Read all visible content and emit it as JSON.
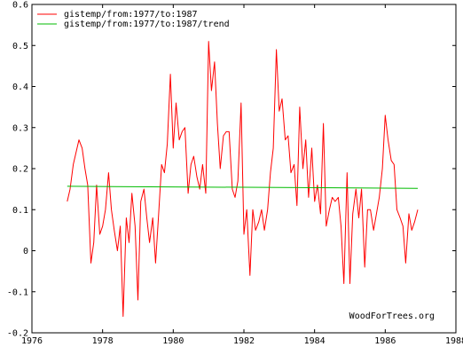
{
  "chart_data": {
    "type": "line",
    "title": "",
    "xlabel": "",
    "ylabel": "",
    "xlim": [
      1976,
      1988
    ],
    "ylim": [
      -0.2,
      0.6
    ],
    "x_ticks": [
      1976,
      1978,
      1980,
      1982,
      1984,
      1986,
      1988
    ],
    "x_tick_labels": [
      "1976",
      "1978",
      "1980",
      "1982",
      "1984",
      "1986",
      "1988"
    ],
    "y_ticks": [
      -0.2,
      -0.1,
      0,
      0.1,
      0.2,
      0.3,
      0.4,
      0.5,
      0.6
    ],
    "y_tick_labels": [
      "-0.2",
      "-0.1",
      "0",
      "0.1",
      "0.2",
      "0.3",
      "0.4",
      "0.5",
      "0.6"
    ],
    "grid": false,
    "legend_position": "top-left",
    "watermark": "WoodForTrees.org",
    "series": [
      {
        "name": "gistemp/from:1977/to:1987",
        "color": "#ff0000",
        "x": [
          1977.0,
          1977.08,
          1977.17,
          1977.25,
          1977.33,
          1977.42,
          1977.5,
          1977.58,
          1977.67,
          1977.75,
          1977.83,
          1977.92,
          1978.0,
          1978.08,
          1978.17,
          1978.25,
          1978.33,
          1978.42,
          1978.5,
          1978.58,
          1978.67,
          1978.75,
          1978.83,
          1978.92,
          1979.0,
          1979.08,
          1979.17,
          1979.25,
          1979.33,
          1979.42,
          1979.5,
          1979.58,
          1979.67,
          1979.75,
          1979.83,
          1979.92,
          1980.0,
          1980.08,
          1980.17,
          1980.25,
          1980.33,
          1980.42,
          1980.5,
          1980.58,
          1980.67,
          1980.75,
          1980.83,
          1980.92,
          1981.0,
          1981.08,
          1981.17,
          1981.25,
          1981.33,
          1981.42,
          1981.5,
          1981.58,
          1981.67,
          1981.75,
          1981.83,
          1981.92,
          1982.0,
          1982.08,
          1982.17,
          1982.25,
          1982.33,
          1982.42,
          1982.5,
          1982.58,
          1982.67,
          1982.75,
          1982.83,
          1982.92,
          1983.0,
          1983.08,
          1983.17,
          1983.25,
          1983.33,
          1983.42,
          1983.5,
          1983.58,
          1983.67,
          1983.75,
          1983.83,
          1983.92,
          1984.0,
          1984.08,
          1984.17,
          1984.25,
          1984.33,
          1984.42,
          1984.5,
          1984.58,
          1984.67,
          1984.75,
          1984.83,
          1984.92,
          1985.0,
          1985.08,
          1985.17,
          1985.25,
          1985.33,
          1985.42,
          1985.5,
          1985.58,
          1985.67,
          1985.75,
          1985.83,
          1985.92,
          1986.0,
          1986.08,
          1986.17,
          1986.25,
          1986.33,
          1986.42,
          1986.5,
          1986.58,
          1986.67,
          1986.75,
          1986.83,
          1986.92
        ],
        "values": [
          0.12,
          0.15,
          0.21,
          0.24,
          0.27,
          0.25,
          0.2,
          0.16,
          -0.03,
          0.02,
          0.16,
          0.04,
          0.06,
          0.1,
          0.19,
          0.1,
          0.05,
          0.0,
          0.06,
          -0.16,
          0.08,
          0.02,
          0.14,
          0.06,
          -0.12,
          0.12,
          0.15,
          0.08,
          0.02,
          0.08,
          -0.03,
          0.08,
          0.21,
          0.19,
          0.26,
          0.43,
          0.25,
          0.36,
          0.27,
          0.29,
          0.3,
          0.14,
          0.21,
          0.23,
          0.18,
          0.15,
          0.21,
          0.14,
          0.51,
          0.39,
          0.46,
          0.31,
          0.2,
          0.28,
          0.29,
          0.29,
          0.15,
          0.13,
          0.17,
          0.36,
          0.04,
          0.1,
          -0.06,
          0.1,
          0.05,
          0.07,
          0.1,
          0.05,
          0.1,
          0.19,
          0.25,
          0.49,
          0.34,
          0.37,
          0.27,
          0.28,
          0.19,
          0.21,
          0.11,
          0.35,
          0.2,
          0.27,
          0.13,
          0.25,
          0.12,
          0.16,
          0.09,
          0.31,
          0.06,
          0.1,
          0.13,
          0.12,
          0.13,
          0.06,
          -0.08,
          0.19,
          -0.08,
          0.09,
          0.15,
          0.08,
          0.15,
          -0.04,
          0.1,
          0.1,
          0.05,
          0.09,
          0.13,
          0.2,
          0.33,
          0.27,
          0.22,
          0.21,
          0.1,
          0.08,
          0.06,
          -0.03,
          0.09,
          0.05,
          0.07,
          0.1
        ]
      },
      {
        "name": "gistemp/from:1977/to:1987/trend",
        "color": "#00bb00",
        "x": [
          1977.0,
          1986.92
        ],
        "values": [
          0.157,
          0.152
        ]
      }
    ]
  }
}
